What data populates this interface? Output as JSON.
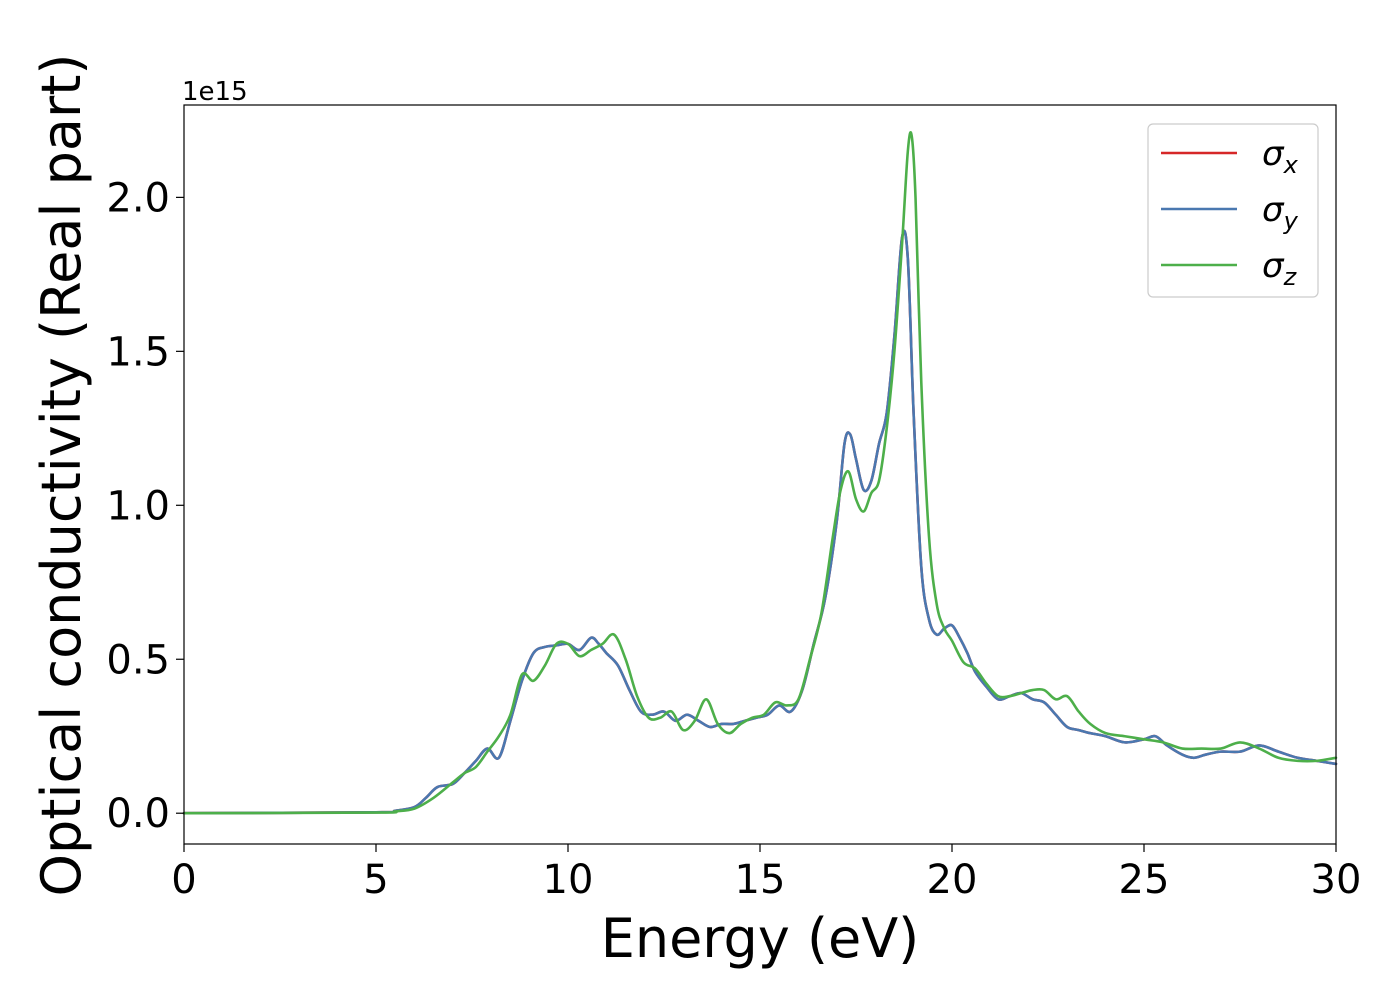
{
  "chart_data": {
    "type": "line",
    "xlabel": "Energy (eV)",
    "ylabel": "Optical conductivity (Real part)",
    "y_offset_label": "1e15",
    "xlim": [
      0,
      30
    ],
    "ylim": [
      -0.1,
      2.3
    ],
    "x_ticks": [
      "0",
      "5",
      "10",
      "15",
      "20",
      "25",
      "30"
    ],
    "y_ticks": [
      "0.0",
      "0.5",
      "1.0",
      "1.5",
      "2.0"
    ],
    "grid": false,
    "legend_position": "top-right",
    "colors": {
      "sigma_x": "#d62728",
      "sigma_y": "#4a78b0",
      "sigma_z": "#4daf4a"
    },
    "series": [
      {
        "name": "σx",
        "legend_symbol": "σ",
        "legend_subscript": "x",
        "color": "#d62728",
        "x": [
          0,
          5,
          5.5,
          6,
          6.3,
          6.6,
          7,
          7.3,
          7.6,
          7.9,
          8.2,
          8.5,
          8.8,
          9.1,
          9.4,
          9.7,
          10,
          10.3,
          10.6,
          10.8,
          11,
          11.3,
          11.6,
          11.9,
          12.2,
          12.5,
          12.8,
          13.1,
          13.4,
          13.7,
          14,
          14.3,
          14.6,
          14.9,
          15.2,
          15.5,
          15.8,
          16.1,
          16.4,
          16.7,
          17,
          17.2,
          17.35,
          17.5,
          17.7,
          17.9,
          18.1,
          18.3,
          18.5,
          18.7,
          18.85,
          19,
          19.2,
          19.4,
          19.6,
          19.8,
          20,
          20.2,
          20.4,
          20.6,
          20.9,
          21.2,
          21.5,
          21.8,
          22.1,
          22.4,
          22.7,
          23,
          23.3,
          23.6,
          24,
          24.5,
          25,
          25.3,
          25.6,
          26,
          26.3,
          26.6,
          27,
          27.5,
          28,
          28.5,
          29,
          29.5,
          30
        ],
        "y": [
          0,
          0.003,
          0.008,
          0.02,
          0.05,
          0.085,
          0.095,
          0.13,
          0.17,
          0.21,
          0.18,
          0.3,
          0.43,
          0.52,
          0.54,
          0.545,
          0.55,
          0.53,
          0.57,
          0.55,
          0.52,
          0.48,
          0.4,
          0.33,
          0.32,
          0.33,
          0.3,
          0.32,
          0.3,
          0.28,
          0.29,
          0.29,
          0.3,
          0.31,
          0.32,
          0.35,
          0.33,
          0.4,
          0.55,
          0.7,
          0.95,
          1.2,
          1.23,
          1.15,
          1.05,
          1.08,
          1.2,
          1.3,
          1.55,
          1.87,
          1.8,
          1.3,
          0.8,
          0.63,
          0.58,
          0.6,
          0.61,
          0.57,
          0.52,
          0.46,
          0.41,
          0.37,
          0.38,
          0.39,
          0.37,
          0.36,
          0.32,
          0.28,
          0.27,
          0.26,
          0.25,
          0.23,
          0.24,
          0.25,
          0.22,
          0.19,
          0.18,
          0.19,
          0.2,
          0.2,
          0.22,
          0.2,
          0.18,
          0.17,
          0.16
        ]
      },
      {
        "name": "σy",
        "legend_symbol": "σ",
        "legend_subscript": "y",
        "color": "#4a78b0",
        "x": [
          0,
          5,
          5.5,
          6,
          6.3,
          6.6,
          7,
          7.3,
          7.6,
          7.9,
          8.2,
          8.5,
          8.8,
          9.1,
          9.4,
          9.7,
          10,
          10.3,
          10.6,
          10.8,
          11,
          11.3,
          11.6,
          11.9,
          12.2,
          12.5,
          12.8,
          13.1,
          13.4,
          13.7,
          14,
          14.3,
          14.6,
          14.9,
          15.2,
          15.5,
          15.8,
          16.1,
          16.4,
          16.7,
          17,
          17.2,
          17.35,
          17.5,
          17.7,
          17.9,
          18.1,
          18.3,
          18.5,
          18.7,
          18.85,
          19,
          19.2,
          19.4,
          19.6,
          19.8,
          20,
          20.2,
          20.4,
          20.6,
          20.9,
          21.2,
          21.5,
          21.8,
          22.1,
          22.4,
          22.7,
          23,
          23.3,
          23.6,
          24,
          24.5,
          25,
          25.3,
          25.6,
          26,
          26.3,
          26.6,
          27,
          27.5,
          28,
          28.5,
          29,
          29.5,
          30
        ],
        "y": [
          0,
          0.003,
          0.008,
          0.02,
          0.05,
          0.085,
          0.095,
          0.13,
          0.17,
          0.21,
          0.18,
          0.3,
          0.43,
          0.52,
          0.54,
          0.545,
          0.55,
          0.53,
          0.57,
          0.55,
          0.52,
          0.48,
          0.4,
          0.33,
          0.32,
          0.33,
          0.3,
          0.32,
          0.3,
          0.28,
          0.29,
          0.29,
          0.3,
          0.31,
          0.32,
          0.35,
          0.33,
          0.4,
          0.55,
          0.7,
          0.95,
          1.2,
          1.23,
          1.15,
          1.05,
          1.08,
          1.2,
          1.3,
          1.55,
          1.87,
          1.8,
          1.3,
          0.8,
          0.63,
          0.58,
          0.6,
          0.61,
          0.57,
          0.52,
          0.46,
          0.41,
          0.37,
          0.38,
          0.39,
          0.37,
          0.36,
          0.32,
          0.28,
          0.27,
          0.26,
          0.25,
          0.23,
          0.24,
          0.25,
          0.22,
          0.19,
          0.18,
          0.19,
          0.2,
          0.2,
          0.22,
          0.2,
          0.18,
          0.17,
          0.16
        ]
      },
      {
        "name": "σz",
        "legend_symbol": "σ",
        "legend_subscript": "z",
        "color": "#4daf4a",
        "x": [
          0,
          5,
          5.5,
          6,
          6.5,
          7,
          7.3,
          7.6,
          7.9,
          8.2,
          8.5,
          8.8,
          9.1,
          9.4,
          9.7,
          10,
          10.3,
          10.6,
          10.9,
          11.2,
          11.5,
          11.8,
          12.1,
          12.4,
          12.7,
          13,
          13.3,
          13.6,
          13.9,
          14.2,
          14.5,
          14.8,
          15.1,
          15.4,
          15.7,
          16,
          16.3,
          16.6,
          16.9,
          17.1,
          17.3,
          17.5,
          17.7,
          17.9,
          18.1,
          18.3,
          18.5,
          18.7,
          18.85,
          18.95,
          19.05,
          19.2,
          19.4,
          19.6,
          19.8,
          20,
          20.3,
          20.6,
          20.9,
          21.2,
          21.5,
          21.8,
          22.1,
          22.4,
          22.7,
          23,
          23.3,
          23.6,
          24,
          24.5,
          25,
          25.5,
          26,
          26.5,
          27,
          27.5,
          28,
          28.5,
          29,
          29.5,
          30
        ],
        "y": [
          0,
          0.002,
          0.006,
          0.015,
          0.05,
          0.1,
          0.13,
          0.15,
          0.2,
          0.25,
          0.32,
          0.45,
          0.43,
          0.48,
          0.55,
          0.55,
          0.51,
          0.53,
          0.55,
          0.58,
          0.5,
          0.38,
          0.31,
          0.31,
          0.33,
          0.27,
          0.3,
          0.37,
          0.29,
          0.26,
          0.29,
          0.31,
          0.32,
          0.36,
          0.35,
          0.37,
          0.5,
          0.65,
          0.9,
          1.05,
          1.11,
          1.02,
          0.98,
          1.04,
          1.08,
          1.25,
          1.5,
          1.85,
          2.15,
          2.2,
          2.0,
          1.4,
          0.9,
          0.68,
          0.6,
          0.56,
          0.49,
          0.47,
          0.42,
          0.38,
          0.38,
          0.39,
          0.4,
          0.4,
          0.37,
          0.38,
          0.33,
          0.29,
          0.26,
          0.25,
          0.24,
          0.23,
          0.21,
          0.21,
          0.21,
          0.23,
          0.21,
          0.18,
          0.17,
          0.17,
          0.18
        ]
      }
    ]
  }
}
